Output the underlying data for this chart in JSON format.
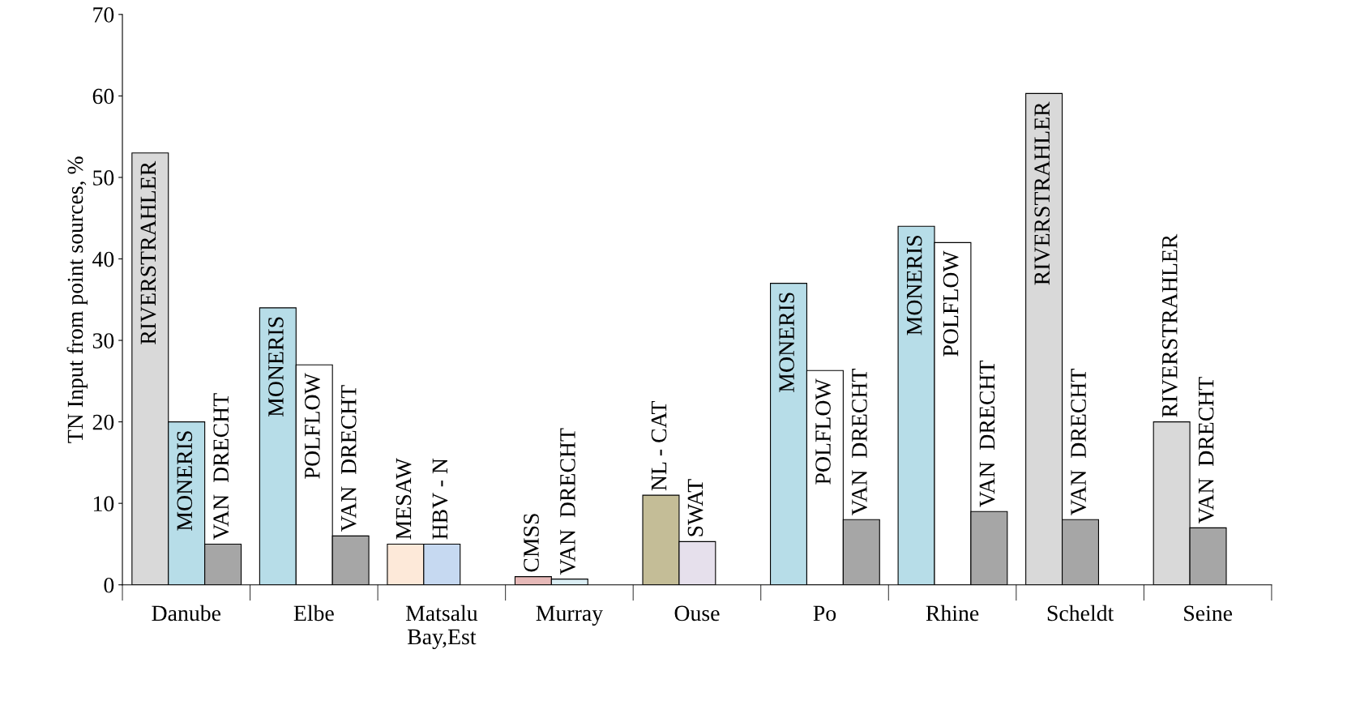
{
  "chart_data": {
    "type": "bar",
    "ylabel": "TN Input from point sources, %",
    "categories": [
      "Danube",
      "Elbe",
      "Matsalu\nBay,Est",
      "Murray",
      "Ouse",
      "Po",
      "Rhine",
      "Scheldt",
      "Seine"
    ],
    "series": [
      {
        "name": "RIVERSTRAHLER",
        "color": "#d9d9d9",
        "values": [
          53,
          null,
          null,
          null,
          null,
          null,
          null,
          60.3,
          20
        ]
      },
      {
        "name": "MONERIS",
        "color": "#b7dde8",
        "values": [
          20,
          34,
          null,
          null,
          null,
          37,
          44,
          null,
          null
        ]
      },
      {
        "name": "POLFLOW",
        "color": "#ffffff",
        "values": [
          null,
          27,
          null,
          null,
          null,
          26.3,
          42,
          null,
          null
        ]
      },
      {
        "name": "MESAW",
        "color": "#fde9d9",
        "values": [
          null,
          null,
          5,
          null,
          null,
          null,
          null,
          null,
          null
        ]
      },
      {
        "name": "HBV - N",
        "color": "#c6d9f1",
        "values": [
          null,
          null,
          5,
          null,
          null,
          null,
          null,
          null,
          null
        ]
      },
      {
        "name": "CMSS",
        "color": "#e6b9b8",
        "values": [
          null,
          null,
          null,
          1,
          null,
          null,
          null,
          null,
          null
        ]
      },
      {
        "name": "NL - CAT",
        "color": "#c4bd97",
        "values": [
          null,
          null,
          null,
          null,
          11,
          null,
          null,
          null,
          null
        ]
      },
      {
        "name": "SWAT",
        "color": "#e6e0ec",
        "values": [
          null,
          null,
          null,
          null,
          5.3,
          null,
          null,
          null,
          null
        ]
      },
      {
        "name": "VAN  DRECHT",
        "colors": [
          "#a6a6a6",
          "#a6a6a6",
          "#a6a6a6",
          "#dbeef4",
          "#a6a6a6",
          "#a6a6a6",
          "#a6a6a6",
          "#a6a6a6",
          "#a6a6a6"
        ],
        "values": [
          5,
          6,
          null,
          0.7,
          null,
          8,
          9,
          8,
          7
        ]
      }
    ],
    "ylim": [
      0,
      70
    ],
    "yticks": [
      0,
      10,
      20,
      30,
      40,
      50,
      60,
      70
    ],
    "grid": false,
    "legend": false
  }
}
